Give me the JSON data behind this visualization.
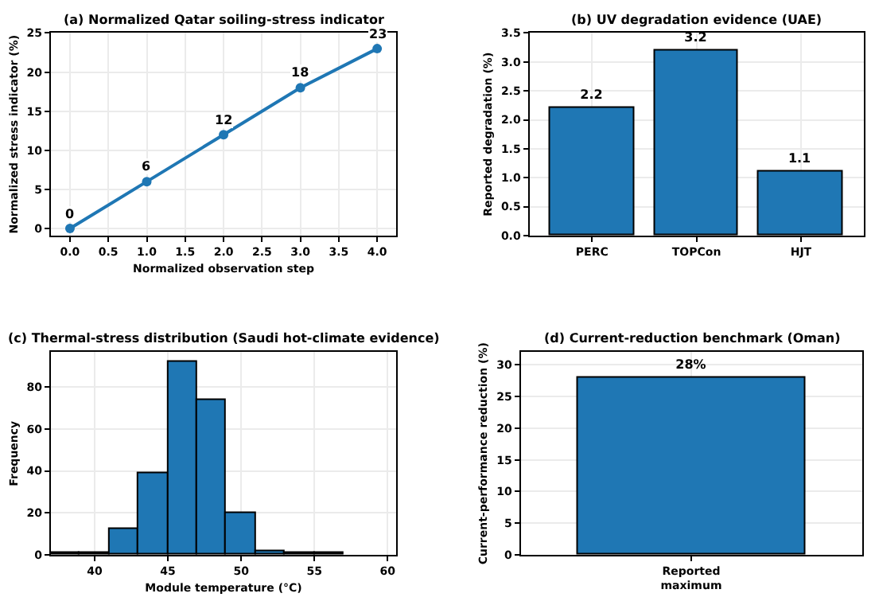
{
  "chart_data": [
    {
      "type": "line",
      "title": "(a) Normalized Qatar soiling-stress indicator",
      "xlabel": "Normalized observation step",
      "ylabel": "Normalized stress indicator (%)",
      "x": [
        0,
        1,
        2,
        3,
        4
      ],
      "series": [
        {
          "color": "#1f77b4",
          "values": [
            0,
            6,
            12,
            18,
            23
          ]
        }
      ],
      "xlim": [
        -0.25,
        4.25
      ],
      "xticks": [
        {
          "value": 0,
          "label": "0.0"
        },
        {
          "value": 0.5,
          "label": "0.5"
        },
        {
          "value": 1,
          "label": "1.0"
        },
        {
          "value": 1.5,
          "label": "1.5"
        },
        {
          "value": 2,
          "label": "2.0"
        },
        {
          "value": 2.5,
          "label": "2.5"
        },
        {
          "value": 3,
          "label": "3.0"
        },
        {
          "value": 3.5,
          "label": "3.5"
        },
        {
          "value": 4,
          "label": "4.0"
        }
      ],
      "ylim": [
        -0.9,
        25
      ],
      "yticks": [
        0,
        5,
        10,
        15,
        20,
        25
      ],
      "marker": "circle",
      "line_style": "solid",
      "data_labels": true,
      "grid": true
    },
    {
      "type": "bar",
      "title": "(b) UV degradation evidence (UAE)",
      "ylabel": "Reported degradation (%)",
      "categories": [
        "PERC",
        "TOPCon",
        "HJT"
      ],
      "series": [
        {
          "color": "#1f77b4",
          "values": [
            2.2,
            3.2,
            1.1
          ]
        }
      ],
      "ylim": [
        0,
        3.5
      ],
      "yticks": [
        {
          "value": 0,
          "label": "0.0"
        },
        {
          "value": 0.5,
          "label": "0.5"
        },
        {
          "value": 1,
          "label": "1.0"
        },
        {
          "value": 1.5,
          "label": "1.5"
        },
        {
          "value": 2,
          "label": "2.0"
        },
        {
          "value": 2.5,
          "label": "2.5"
        },
        {
          "value": 3,
          "label": "3.0"
        },
        {
          "value": 3.5,
          "label": "3.5"
        }
      ],
      "data_labels": true,
      "grid": true
    },
    {
      "type": "histogram",
      "title": "(c) Thermal-stress distribution (Saudi hot-climate evidence)",
      "xlabel": "Module temperature (°C)",
      "ylabel": "Frequency",
      "bins": [
        37,
        39,
        41,
        43,
        45,
        47,
        49,
        51,
        53,
        55,
        57
      ],
      "series": [
        {
          "color": "#1f77b4",
          "values": [
            1,
            1,
            12,
            39,
            92,
            74,
            20,
            2,
            1,
            1
          ]
        }
      ],
      "xlim": [
        37,
        60.6
      ],
      "xticks": [
        40,
        45,
        50,
        55,
        60
      ],
      "ylim": [
        0,
        96.6
      ],
      "yticks": [
        0,
        20,
        40,
        60,
        80
      ],
      "grid": true
    },
    {
      "type": "bar",
      "title": "(d) Current-reduction benchmark (Oman)",
      "ylabel": "Current-performance reduction (%)",
      "categories": [
        "Reported maximum"
      ],
      "series": [
        {
          "color": "#1f77b4",
          "values": [
            28
          ],
          "value_labels": [
            "28%"
          ]
        }
      ],
      "ylim": [
        0,
        32
      ],
      "yticks": [
        0,
        5,
        10,
        15,
        20,
        25,
        30
      ],
      "grid": true
    }
  ]
}
